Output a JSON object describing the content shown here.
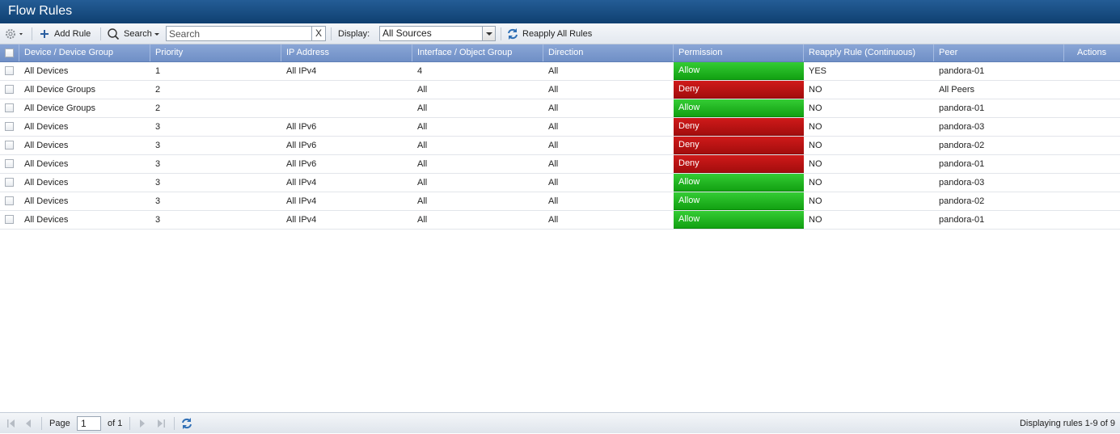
{
  "title": "Flow Rules",
  "toolbar": {
    "gear_icon": "gear-icon",
    "add_rule_label": "Add Rule",
    "search_label": "Search",
    "search_placeholder": "Search",
    "search_clear": "X",
    "display_label": "Display:",
    "display_value": "All Sources",
    "reapply_label": "Reapply All Rules"
  },
  "columns": [
    "Device / Device Group",
    "Priority",
    "IP Address",
    "Interface / Object Group",
    "Direction",
    "Permission",
    "Reapply Rule (Continuous)",
    "Peer",
    "Actions"
  ],
  "rows": [
    {
      "device": "All Devices",
      "priority": "1",
      "ip": "All IPv4",
      "iface": "4",
      "direction": "All",
      "permission": "Allow",
      "reapply": "YES",
      "peer": "pandora-01"
    },
    {
      "device": "All Device Groups",
      "priority": "2",
      "ip": "",
      "iface": "All",
      "direction": "All",
      "permission": "Deny",
      "reapply": "NO",
      "peer": "All Peers"
    },
    {
      "device": "All Device Groups",
      "priority": "2",
      "ip": "",
      "iface": "All",
      "direction": "All",
      "permission": "Allow",
      "reapply": "NO",
      "peer": "pandora-01"
    },
    {
      "device": "All Devices",
      "priority": "3",
      "ip": "All IPv6",
      "iface": "All",
      "direction": "All",
      "permission": "Deny",
      "reapply": "NO",
      "peer": "pandora-03"
    },
    {
      "device": "All Devices",
      "priority": "3",
      "ip": "All IPv6",
      "iface": "All",
      "direction": "All",
      "permission": "Deny",
      "reapply": "NO",
      "peer": "pandora-02"
    },
    {
      "device": "All Devices",
      "priority": "3",
      "ip": "All IPv6",
      "iface": "All",
      "direction": "All",
      "permission": "Deny",
      "reapply": "NO",
      "peer": "pandora-01"
    },
    {
      "device": "All Devices",
      "priority": "3",
      "ip": "All IPv4",
      "iface": "All",
      "direction": "All",
      "permission": "Allow",
      "reapply": "NO",
      "peer": "pandora-03"
    },
    {
      "device": "All Devices",
      "priority": "3",
      "ip": "All IPv4",
      "iface": "All",
      "direction": "All",
      "permission": "Allow",
      "reapply": "NO",
      "peer": "pandora-02"
    },
    {
      "device": "All Devices",
      "priority": "3",
      "ip": "All IPv4",
      "iface": "All",
      "direction": "All",
      "permission": "Allow",
      "reapply": "NO",
      "peer": "pandora-01"
    }
  ],
  "colors": {
    "allow": "#1fb31f",
    "deny": "#bb1212",
    "header": "#7b98cc",
    "titlebar": "#1a4d82"
  },
  "footer": {
    "page_label": "Page",
    "page_value": "1",
    "of_label": "of 1",
    "status": "Displaying rules 1-9 of 9"
  }
}
